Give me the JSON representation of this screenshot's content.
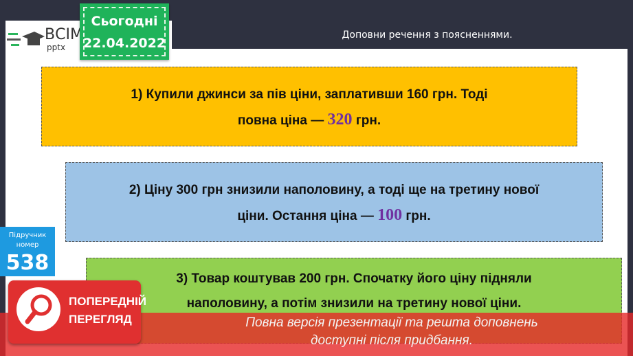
{
  "header": {
    "title": "Доповни речення з  поясненнями.",
    "date_label": "Сьогодні",
    "date": "22.04.2022"
  },
  "logo": {
    "line1": "ВСІМ",
    "line2": "pptx"
  },
  "textbook": {
    "label1": "Підручник",
    "label2": "номер",
    "number": "538"
  },
  "tasks": [
    {
      "text": "1) Купили джинси за пів ціни, заплативши 160 грн. Тоді",
      "text2": "повна ціна  —",
      "answer": "320",
      "unit": "грн.",
      "color": "#ffc000"
    },
    {
      "text": "2) Ціну 300 грн знизили наполовину, а  тоді ще на третину нової",
      "text2": "ціни. Остання ціна  —",
      "answer": "100",
      "unit": "грн.",
      "color": "#9dc3e6"
    },
    {
      "text": "3) Товар коштував 200 грн. Спочатку його ціну підняли",
      "text2": "наполовину, а  потім знизили на третину нової ціни.",
      "color": "#92d050"
    }
  ],
  "preview": {
    "line1": "ПОПЕРЕДНІЙ",
    "line2": "ПЕРЕГЛЯД",
    "notice1": "Повна версія презентації та решта доповнень",
    "notice2": "доступні після придбання."
  }
}
